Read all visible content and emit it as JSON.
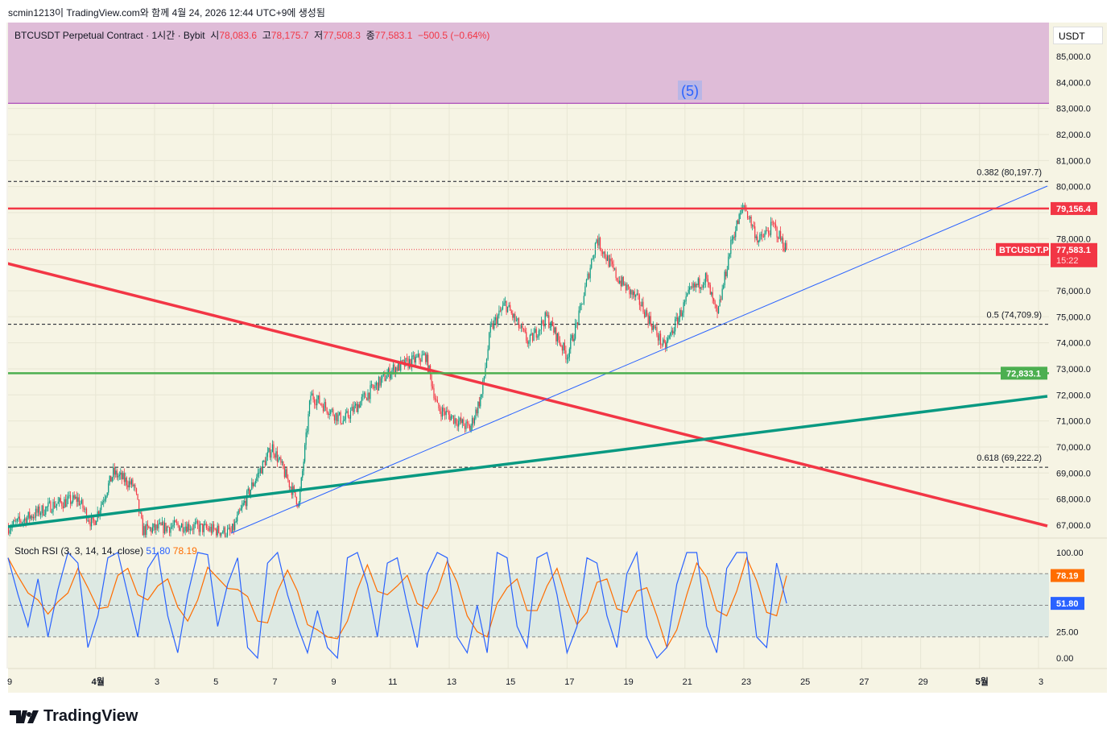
{
  "credit": "scmin1213이 TradingView.com와 함께 4월 24, 2026 12:44 UTC+9에 생성됨",
  "legend": {
    "symbol": "BTCUSDT Perpetual Contract · 1시간 · Bybit",
    "o_label": "시",
    "o": "78,083.6",
    "h_label": "고",
    "h": "78,175.7",
    "l_label": "저",
    "l": "77,508.3",
    "c_label": "종",
    "c": "77,583.1",
    "change": "−500.5 (−0.64%)"
  },
  "currency": "USDT",
  "brand": "TradingView",
  "zone_label": "(5)",
  "colors": {
    "bg": "#f6f4e4",
    "up": "#089981",
    "down": "#f23645",
    "zone": "#dfbcd8",
    "green": "#4caf50",
    "teal": "#089981",
    "blue": "#2962ff"
  },
  "chart_data": {
    "type": "candlestick",
    "price_ticks": [
      85000,
      84000,
      83000,
      82000,
      81000,
      80000,
      78000,
      76000,
      75000,
      74000,
      73000,
      72000,
      71000,
      70000,
      69000,
      68000,
      67000
    ],
    "price_tick_labels": [
      "85,000.0",
      "84,000.0",
      "83,000.0",
      "82,000.0",
      "81,000.0",
      "80,000.0",
      "78,000.0",
      "76,000.0",
      "75,000.0",
      "74,000.0",
      "73,000.0",
      "72,000.0",
      "71,000.0",
      "70,000.0",
      "69,000.0",
      "68,000.0",
      "67,000.0"
    ],
    "ylim": [
      66700,
      85500
    ],
    "time_ticks": [
      {
        "d": 0,
        "t": "9"
      },
      {
        "d": 3,
        "t": "4월"
      },
      {
        "d": 5,
        "t": "3"
      },
      {
        "d": 7,
        "t": "5"
      },
      {
        "d": 9,
        "t": "7"
      },
      {
        "d": 11,
        "t": "9"
      },
      {
        "d": 13,
        "t": "11"
      },
      {
        "d": 15,
        "t": "13"
      },
      {
        "d": 17,
        "t": "15"
      },
      {
        "d": 19,
        "t": "17"
      },
      {
        "d": 21,
        "t": "19"
      },
      {
        "d": 23,
        "t": "21"
      },
      {
        "d": 25,
        "t": "23"
      },
      {
        "d": 27,
        "t": "25"
      },
      {
        "d": 29,
        "t": "27"
      },
      {
        "d": 31,
        "t": "29"
      },
      {
        "d": 33,
        "t": "5월"
      },
      {
        "d": 35,
        "t": "3"
      }
    ],
    "price_path": [
      [
        0,
        66900
      ],
      [
        1.6,
        67800
      ],
      [
        2.4,
        68000
      ],
      [
        2.9,
        67000
      ],
      [
        3.6,
        69000
      ],
      [
        4.3,
        68500
      ],
      [
        4.6,
        66800
      ],
      [
        6,
        67000
      ],
      [
        7.6,
        66700
      ],
      [
        8.3,
        68500
      ],
      [
        9,
        70000
      ],
      [
        9.9,
        67800
      ],
      [
        10.3,
        72000
      ],
      [
        11.4,
        71000
      ],
      [
        12.2,
        72000
      ],
      [
        13.1,
        73000
      ],
      [
        14.2,
        73500
      ],
      [
        14.6,
        71500
      ],
      [
        15.7,
        70700
      ],
      [
        16.1,
        72000
      ],
      [
        16.4,
        74500
      ],
      [
        16.9,
        75500
      ],
      [
        17.7,
        74000
      ],
      [
        18.3,
        75000
      ],
      [
        19,
        73500
      ],
      [
        19.4,
        75000
      ],
      [
        20,
        78000
      ],
      [
        20.7,
        76500
      ],
      [
        21.5,
        75500
      ],
      [
        22.3,
        73800
      ],
      [
        23.2,
        76000
      ],
      [
        23.7,
        76500
      ],
      [
        24.1,
        75000
      ],
      [
        24.6,
        78000
      ],
      [
        25,
        79300
      ],
      [
        25.5,
        77900
      ],
      [
        26,
        78500
      ],
      [
        26.45,
        77583.1
      ]
    ],
    "horizontal_lines": [
      {
        "price": 79156.4,
        "label": "79,156.4",
        "color": "#f23645"
      },
      {
        "price": 72833.1,
        "label": "72,833.1",
        "color": "#4caf50"
      }
    ],
    "fib_levels": [
      {
        "price": 80197.7,
        "label": "0.382 (80,197.7)"
      },
      {
        "price": 74709.9,
        "label": "0.5 (74,709.9)"
      },
      {
        "price": 69222.2,
        "label": "0.618 (69,222.2)"
      }
    ],
    "trendlines": [
      {
        "from": [
          0,
          77050
        ],
        "to": [
          35.3,
          66967
        ],
        "color": "#f23645"
      },
      {
        "from": [
          0,
          66936
        ],
        "to": [
          35.3,
          71947
        ],
        "color": "#089981"
      },
      {
        "from": [
          7.6,
          66689
        ],
        "to": [
          35.3,
          80020
        ],
        "color": "#2962ff"
      }
    ],
    "zone": {
      "from": 83200,
      "to": 85500
    },
    "last_price": {
      "symbol": "BTCUSDT.P",
      "price": "77,583.1",
      "countdown": "15:22",
      "value": 77583.1
    },
    "rsi": {
      "title": "Stoch RSI (3, 3, 14, 14, close)",
      "k": "51.80",
      "d": "78.19",
      "k_value": 51.8,
      "d_value": 78.19,
      "ticks": [
        "100.00",
        "25.00",
        "0.00"
      ],
      "bands": [
        80,
        50,
        20
      ],
      "k_series": [
        95,
        60,
        30,
        75,
        20,
        65,
        100,
        90,
        10,
        40,
        95,
        100,
        60,
        20,
        85,
        100,
        40,
        5,
        60,
        100,
        98,
        30,
        70,
        95,
        10,
        0,
        90,
        100,
        60,
        30,
        5,
        45,
        10,
        0,
        95,
        100,
        70,
        20,
        90,
        95,
        50,
        10,
        80,
        100,
        95,
        20,
        5,
        50,
        5,
        100,
        95,
        30,
        10,
        95,
        100,
        60,
        5,
        30,
        95,
        90,
        40,
        10,
        80,
        100,
        20,
        0,
        10,
        70,
        100,
        100,
        30,
        5,
        85,
        100,
        100,
        20,
        10,
        90,
        51.8
      ]
    }
  }
}
